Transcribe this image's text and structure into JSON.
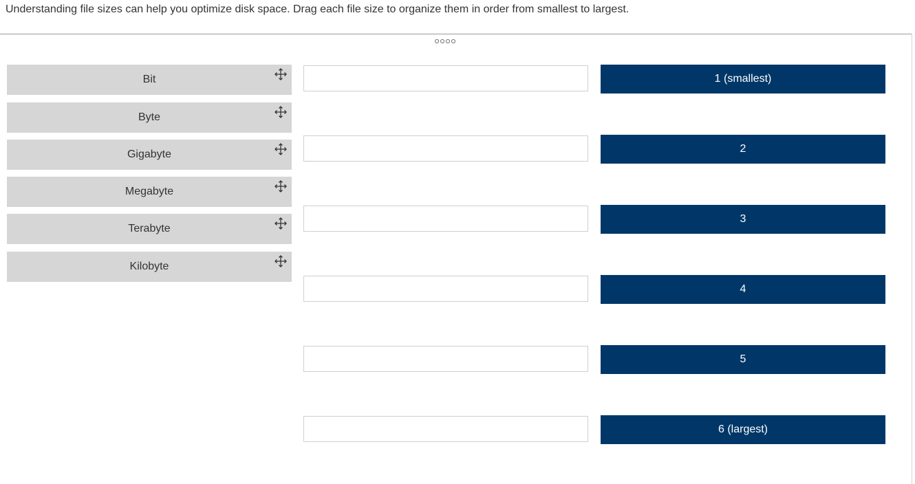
{
  "instructions": "Understanding file sizes can help you optimize disk space. Drag each file size to organize them in order from smallest to largest.",
  "drag_items": [
    {
      "label": "Bit",
      "icon": "move-icon"
    },
    {
      "label": "Byte",
      "icon": "move-icon"
    },
    {
      "label": "Gigabyte",
      "icon": "move-icon"
    },
    {
      "label": "Megabyte",
      "icon": "move-icon"
    },
    {
      "label": "Terabyte",
      "icon": "move-icon"
    },
    {
      "label": "Kilobyte",
      "icon": "move-icon"
    }
  ],
  "drop_slots": [
    "",
    "",
    "",
    "",
    "",
    ""
  ],
  "rank_labels": [
    "1 (smallest)",
    "2",
    "3",
    "4",
    "5",
    "6 (largest)"
  ],
  "colors": {
    "drag_item_bg": "#d6d6d6",
    "rank_bg": "#003768",
    "rank_text": "#ffffff"
  }
}
